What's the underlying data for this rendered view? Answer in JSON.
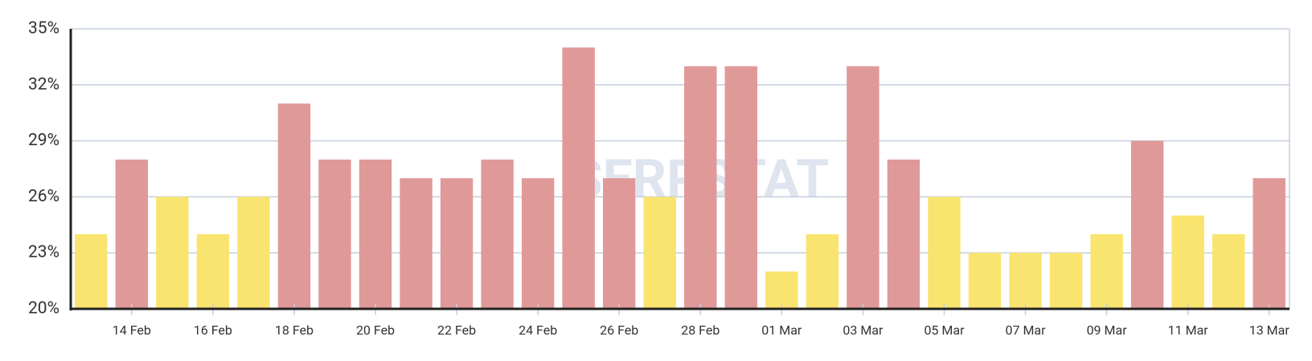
{
  "chart_data": {
    "type": "bar",
    "watermark": "SERPSTAT",
    "categories": [
      null,
      "14 Feb",
      null,
      "16 Feb",
      null,
      "18 Feb",
      null,
      "20 Feb",
      null,
      "22 Feb",
      null,
      "24 Feb",
      null,
      "26 Feb",
      null,
      "28 Feb",
      null,
      "01 Mar",
      null,
      "03 Mar",
      null,
      "05 Mar",
      null,
      "07 Mar",
      null,
      "09 Mar",
      null,
      "11 Mar",
      null,
      "13 Mar"
    ],
    "values": [
      24,
      28,
      26,
      24,
      26,
      31,
      28,
      28,
      27,
      27,
      28,
      27,
      34,
      27,
      26,
      33,
      33,
      22,
      24,
      33,
      28,
      26,
      23,
      23,
      23,
      24,
      29,
      25,
      24,
      27
    ],
    "colors": [
      "#f9e46f",
      "#e09999",
      "#f9e46f",
      "#f9e46f",
      "#f9e46f",
      "#e09999",
      "#e09999",
      "#e09999",
      "#e09999",
      "#e09999",
      "#e09999",
      "#e09999",
      "#e09999",
      "#e09999",
      "#f9e46f",
      "#e09999",
      "#e09999",
      "#f9e46f",
      "#f9e46f",
      "#e09999",
      "#e09999",
      "#f9e46f",
      "#f9e46f",
      "#f9e46f",
      "#f9e46f",
      "#f9e46f",
      "#e09999",
      "#f9e46f",
      "#f9e46f",
      "#e09999"
    ],
    "ylim": [
      20,
      35
    ],
    "yticks": [
      {
        "value": 20,
        "label": "20%"
      },
      {
        "value": 23,
        "label": "23%"
      },
      {
        "value": 26,
        "label": "26%"
      },
      {
        "value": 29,
        "label": "29%"
      },
      {
        "value": 32,
        "label": "32%"
      },
      {
        "value": 35,
        "label": "35%"
      }
    ],
    "grid": true
  }
}
